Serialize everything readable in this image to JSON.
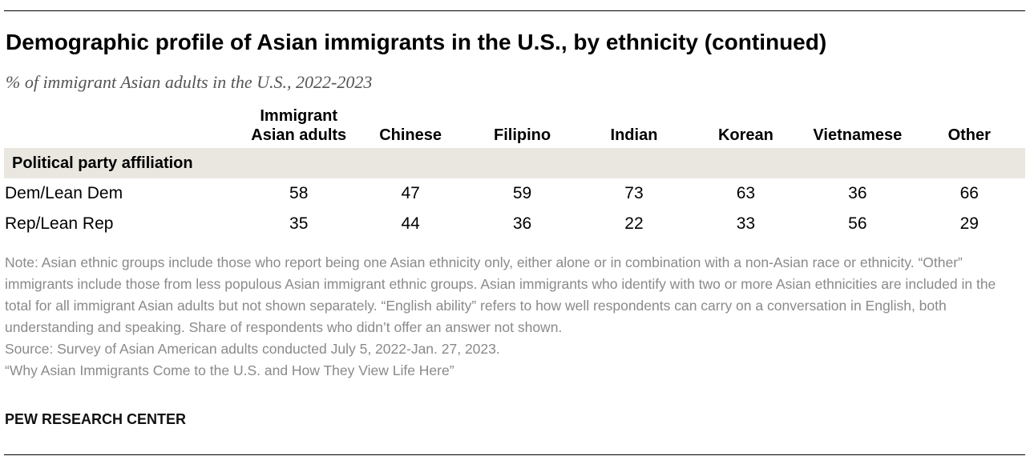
{
  "title": "Demographic profile of Asian immigrants in the U.S., by ethnicity (continued)",
  "subtitle": "% of immigrant Asian adults in the U.S., 2022-2023",
  "chart_data": {
    "type": "table",
    "columns": [
      "Immigrant\nAsian adults",
      "Chinese",
      "Filipino",
      "Indian",
      "Korean",
      "Vietnamese",
      "Other"
    ],
    "section": "Political party affiliation",
    "rows": [
      {
        "label": "Dem/Lean Dem",
        "values": [
          58,
          47,
          59,
          73,
          63,
          36,
          66
        ]
      },
      {
        "label": "Rep/Lean Rep",
        "values": [
          35,
          44,
          36,
          22,
          33,
          56,
          29
        ]
      }
    ]
  },
  "note": "Note: Asian ethnic groups include those who report being one Asian ethnicity only, either alone or in combination with a non-Asian race or ethnicity. “Other” immigrants include those from less populous Asian immigrant ethnic groups. Asian immigrants who identify with two or more Asian ethnicities are included in the total for all immigrant Asian adults but not shown separately. “English ability” refers to how well respondents can carry on a conversation in English, both understanding and speaking. Share of respondents who didn’t offer an answer not shown.",
  "source": "Source: Survey of Asian American adults conducted July 5, 2022-Jan. 27, 2023.",
  "report": "“Why Asian Immigrants Come to the U.S. and How They View Life Here”",
  "brand": "PEW RESEARCH CENTER"
}
